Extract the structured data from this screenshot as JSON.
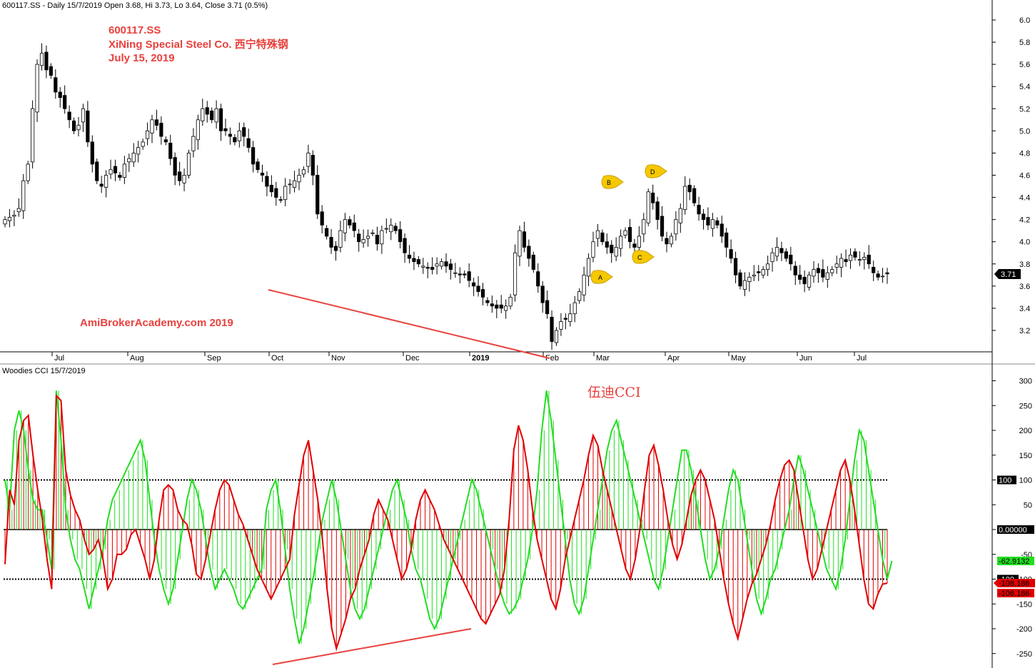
{
  "header": {
    "price_title": "600117.SS - Daily 15/7/2019 Open 3.68, Hi 3.73, Lo 3.64, Close 3.71 (0.5%)",
    "cci_title": "Woodies CCI  15/7/2019"
  },
  "annotations": {
    "ticker": "600117.SS",
    "company": "XiNing Special Steel Co.  西宁特殊钢",
    "date": "July 15, 2019",
    "watermark": "AmiBrokerAcademy.com  2019",
    "cci_note": "伍迪CCI",
    "wave_labels": [
      "A",
      "B",
      "C",
      "D"
    ]
  },
  "colors": {
    "bull_candle": "#ffffff",
    "bear_candle": "#000000",
    "annotation_red": "#e8413d",
    "cci_red": "#e00000",
    "cci_green": "#22dd22",
    "label_bubble": "#f5c800"
  },
  "chart_data": [
    {
      "type": "candlestick",
      "title": "600117.SS - Daily 15/7/2019 Open 3.68, Hi 3.73, Lo 3.64, Close 3.71 (0.5%)",
      "x_tick_labels": [
        "Jul",
        "Aug",
        "Sep",
        "Oct",
        "Nov",
        "Dec",
        "2019",
        "Feb",
        "Mar",
        "Apr",
        "May",
        "Jun",
        "Jul"
      ],
      "y_ticks": [
        3.2,
        3.4,
        3.6,
        3.8,
        4.0,
        4.2,
        4.4,
        4.6,
        4.8,
        5.0,
        5.2,
        5.4,
        5.6,
        5.8,
        6.0
      ],
      "ylim": [
        3.0,
        6.2
      ],
      "last_close_label": "3.71",
      "closes": [
        4.2,
        4.22,
        4.24,
        4.3,
        4.55,
        4.7,
        5.2,
        5.6,
        5.7,
        5.55,
        5.5,
        5.35,
        5.3,
        5.2,
        5.1,
        5.0,
        5.05,
        5.2,
        4.9,
        4.7,
        4.55,
        4.5,
        4.6,
        4.65,
        4.62,
        4.58,
        4.7,
        4.75,
        4.8,
        4.85,
        4.9,
        5.0,
        5.1,
        5.05,
        4.95,
        4.9,
        4.75,
        4.6,
        4.55,
        4.6,
        4.8,
        4.95,
        5.1,
        5.2,
        5.15,
        5.1,
        5.2,
        5.0,
        5.0,
        4.95,
        4.9,
        5.0,
        4.95,
        4.85,
        4.7,
        4.65,
        4.6,
        4.5,
        4.45,
        4.4,
        4.38,
        4.5,
        4.52,
        4.55,
        4.6,
        4.65,
        4.8,
        4.6,
        4.25,
        4.15,
        4.05,
        3.95,
        3.92,
        4.1,
        4.2,
        4.15,
        4.1,
        4.0,
        4.02,
        4.05,
        4.08,
        3.98,
        4.1,
        4.12,
        4.15,
        4.1,
        4.0,
        3.9,
        3.85,
        3.82,
        3.8,
        3.78,
        3.76,
        3.75,
        3.8,
        3.82,
        3.78,
        3.75,
        3.72,
        3.7,
        3.7,
        3.65,
        3.6,
        3.55,
        3.5,
        3.45,
        3.42,
        3.4,
        3.4,
        3.42,
        3.5,
        3.9,
        4.1,
        3.95,
        3.85,
        3.75,
        3.6,
        3.45,
        3.35,
        3.1,
        3.2,
        3.28,
        3.3,
        3.35,
        3.45,
        3.55,
        3.7,
        3.85,
        4.0,
        4.1,
        4.0,
        3.95,
        3.9,
        3.95,
        4.05,
        4.1,
        4.0,
        3.95,
        4.05,
        4.2,
        4.45,
        4.35,
        4.2,
        4.05,
        3.98,
        4.05,
        4.2,
        4.3,
        4.5,
        4.45,
        4.35,
        4.25,
        4.2,
        4.15,
        4.2,
        4.15,
        4.05,
        3.95,
        3.85,
        3.7,
        3.6,
        3.65,
        3.68,
        3.7,
        3.72,
        3.75,
        3.8,
        3.9,
        3.95,
        3.9,
        3.85,
        3.8,
        3.7,
        3.66,
        3.62,
        3.7,
        3.75,
        3.72,
        3.68,
        3.72,
        3.75,
        3.8,
        3.85,
        3.82,
        3.88,
        3.86,
        3.84,
        3.86,
        3.8,
        3.72,
        3.68,
        3.69,
        3.71
      ]
    },
    {
      "type": "line",
      "title": "Woodies CCI  15/7/2019",
      "y_ticks": [
        -250,
        -200,
        -150,
        -100,
        -50,
        0,
        50,
        100,
        150,
        200,
        250,
        300
      ],
      "ylim": [
        -280,
        310
      ],
      "reference_lines": [
        100,
        0,
        -100
      ],
      "reference_tags": [
        "100",
        "0.00000",
        "-100"
      ],
      "value_tags": [
        "-62.9132",
        "-108.186",
        "-106.186"
      ],
      "series": [
        {
          "values": [
            -70,
            80,
            50,
            180,
            220,
            230,
            150,
            80,
            20,
            -60,
            -120,
            270,
            260,
            120,
            70,
            40,
            20,
            -20,
            -50,
            -40,
            -20,
            -60,
            -120,
            -100,
            -50,
            -50,
            -40,
            -10,
            0,
            -30,
            -60,
            -100,
            -60,
            20,
            80,
            90,
            80,
            40,
            20,
            10,
            -30,
            -90,
            -100,
            -60,
            -10,
            40,
            80,
            100,
            90,
            60,
            30,
            10,
            -20,
            -50,
            -80,
            -100,
            -120,
            -140,
            -120,
            -100,
            -80,
            -60,
            30,
            90,
            150,
            180,
            120,
            60,
            -20,
            -120,
            -200,
            -240,
            -210,
            -180,
            -140,
            -120,
            -80,
            -50,
            -20,
            30,
            60,
            40,
            20,
            -20,
            -60,
            -100,
            -80,
            -40,
            20,
            60,
            80,
            60,
            40,
            10,
            -20,
            -40,
            -60,
            -80,
            -100,
            -120,
            -140,
            -160,
            -180,
            -190,
            -170,
            -150,
            -130,
            -80,
            20,
            160,
            210,
            180,
            120,
            40,
            -20,
            -60,
            -100,
            -140,
            -160,
            -120,
            -60,
            -20,
            20,
            60,
            100,
            150,
            190,
            170,
            120,
            80,
            40,
            0,
            -40,
            -80,
            -100,
            -60,
            0,
            80,
            150,
            170,
            130,
            80,
            20,
            -30,
            -60,
            -30,
            20,
            70,
            100,
            120,
            100,
            60,
            20,
            -40,
            -100,
            -150,
            -190,
            -220,
            -180,
            -140,
            -110,
            -90,
            -60,
            -30,
            10,
            60,
            100,
            130,
            140,
            120,
            60,
            0,
            -60,
            -100,
            -80,
            -40,
            0,
            40,
            80,
            120,
            140,
            100,
            40,
            -30,
            -100,
            -150,
            -160,
            -130,
            -110,
            -108
          ]
        },
        {
          "values": [
            100,
            40,
            200,
            240,
            200,
            120,
            60,
            40,
            40,
            -20,
            -80,
            280,
            180,
            40,
            -20,
            -60,
            -80,
            -120,
            -160,
            -120,
            -80,
            -40,
            20,
            60,
            80,
            100,
            120,
            140,
            160,
            180,
            140,
            60,
            -20,
            -80,
            -120,
            -150,
            -120,
            -60,
            0,
            60,
            100,
            80,
            40,
            -20,
            -80,
            -120,
            -100,
            -80,
            -100,
            -120,
            -150,
            -160,
            -140,
            -120,
            -100,
            -80,
            40,
            80,
            100,
            40,
            -40,
            -120,
            -180,
            -230,
            -200,
            -150,
            -100,
            -40,
            20,
            60,
            100,
            60,
            0,
            -60,
            -120,
            -160,
            -180,
            -160,
            -120,
            -80,
            -40,
            0,
            40,
            80,
            100,
            60,
            20,
            -40,
            -80,
            -100,
            -140,
            -180,
            -200,
            -180,
            -140,
            -100,
            -60,
            -20,
            20,
            60,
            100,
            80,
            40,
            0,
            -40,
            -80,
            -120,
            -150,
            -170,
            -160,
            -140,
            -100,
            -60,
            0,
            80,
            200,
            280,
            220,
            140,
            60,
            -20,
            -100,
            -150,
            -170,
            -140,
            -80,
            -20,
            40,
            100,
            160,
            200,
            220,
            180,
            140,
            100,
            60,
            20,
            -20,
            -60,
            -100,
            -120,
            -80,
            -20,
            40,
            100,
            160,
            160,
            120,
            60,
            0,
            -60,
            -100,
            -80,
            -40,
            20,
            80,
            120,
            100,
            40,
            -20,
            -80,
            -140,
            -170,
            -140,
            -100,
            -80,
            -40,
            0,
            40,
            100,
            150,
            120,
            80,
            40,
            0,
            -40,
            -80,
            -100,
            -120,
            -80,
            -20,
            60,
            140,
            200,
            180,
            120,
            60,
            0,
            -60,
            -100,
            -63
          ]
        }
      ]
    }
  ]
}
